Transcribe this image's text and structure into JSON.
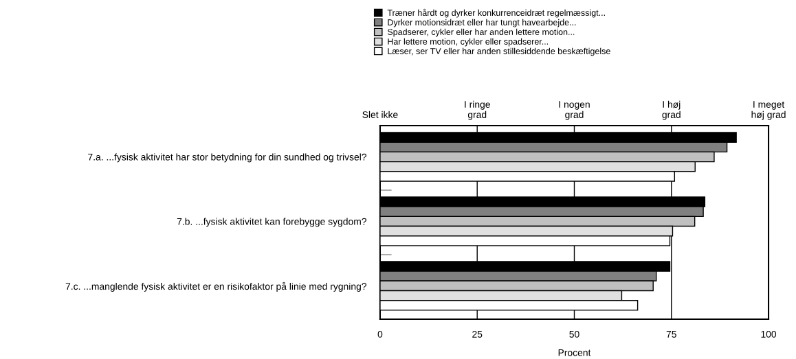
{
  "chart_data": {
    "type": "bar",
    "orientation": "horizontal",
    "xlabel": "Procent",
    "categories": [
      "7.a. ...fysisk aktivitet har stor betydning for din sundhed og trivsel?",
      "7.b. ...fysisk aktivitet kan forebygge sygdom?",
      "7.c. ...manglende fysisk aktivitet er en risikofaktor på linie med rygning?"
    ],
    "series": [
      {
        "name": "Træner hårdt og dyrker konkurrenceidræt regelmæssigt...",
        "color": "#000000",
        "values": [
          91.7,
          83.6,
          74.6
        ]
      },
      {
        "name": "Dyrker motionsidræt eller har tungt havearbejde...",
        "color": "#808080",
        "values": [
          89.3,
          83.2,
          71.1
        ]
      },
      {
        "name": "Spadserer, cykler eller har anden lettere motion...",
        "color": "#c0c0c0",
        "values": [
          86.0,
          81.0,
          70.3
        ]
      },
      {
        "name": "Har lettere motion, cykler eller spadserer...",
        "color": "#e0e0e0",
        "values": [
          81.1,
          75.3,
          62.2
        ]
      },
      {
        "name": "Læser, ser TV eller har anden stillesiddende beskæftigelse",
        "color": "#ffffff",
        "values": [
          75.8,
          74.6,
          66.3
        ]
      }
    ],
    "xlim": [
      0,
      100
    ],
    "xticks": [
      0,
      25,
      50,
      75,
      100
    ],
    "annotations": [
      "Slet ikke",
      "I ringe\ngrad",
      "I nogen\ngrad",
      "I høj\ngrad",
      "I meget\nhøj grad"
    ],
    "grid": "x",
    "legend": "top"
  }
}
